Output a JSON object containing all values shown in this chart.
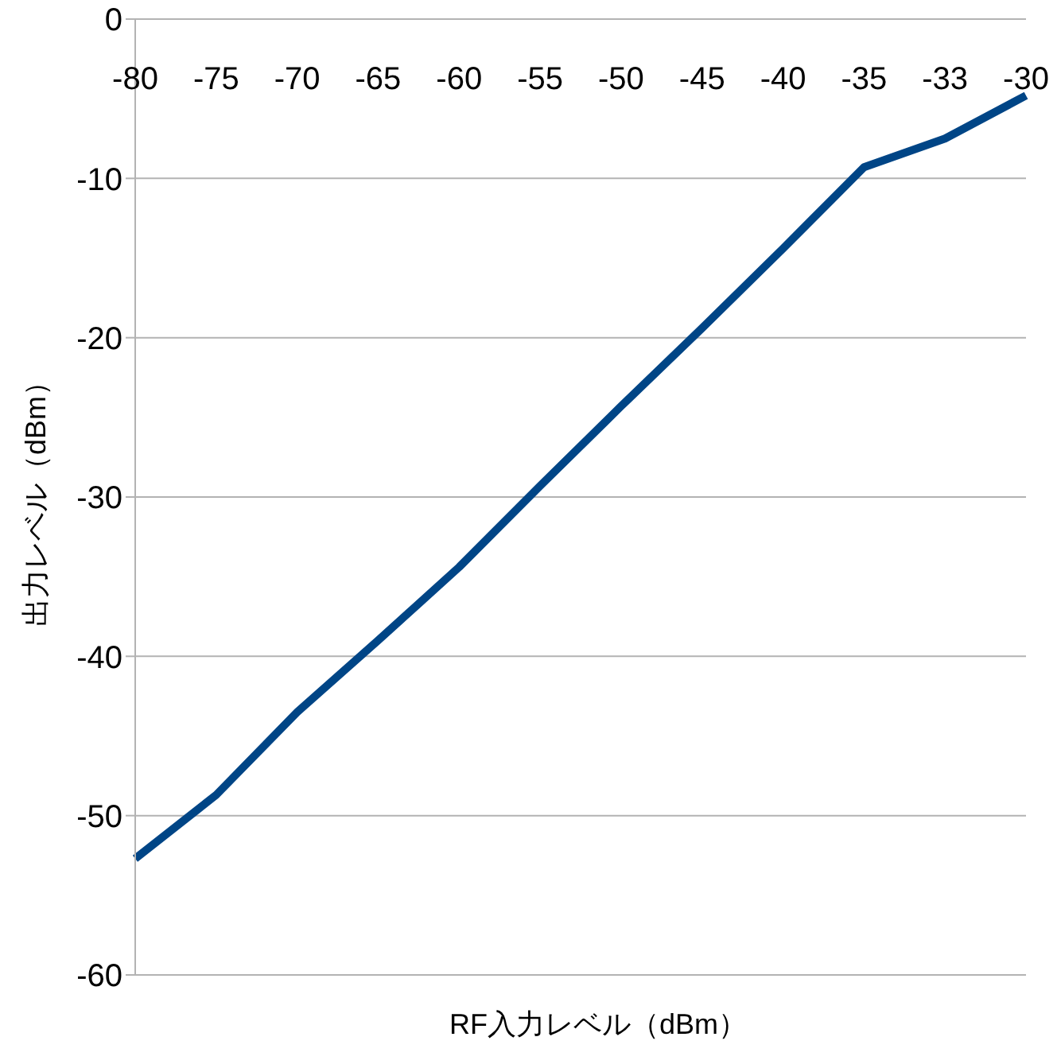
{
  "chart_data": {
    "type": "line",
    "xlabel": "RF入力レベル（dBm）",
    "ylabel": "出力レベル（dBm）",
    "categories": [
      "-80",
      "-75",
      "-70",
      "-65",
      "-60",
      "-55",
      "-50",
      "-45",
      "-40",
      "-35",
      "-33",
      "-30"
    ],
    "series": [
      {
        "color": "#004586",
        "values": [
          -52.7,
          -48.7,
          -43.5,
          -39.0,
          -34.4,
          -29.3,
          -24.3,
          -19.4,
          -14.4,
          -9.3,
          -7.5,
          -4.8
        ]
      }
    ],
    "ylim": [
      -60,
      0
    ],
    "yticks": [
      -60,
      -50,
      -40,
      -30,
      -20,
      -10,
      0
    ],
    "grid": "y",
    "legend": false,
    "marker": "none",
    "line_style": "solid"
  }
}
